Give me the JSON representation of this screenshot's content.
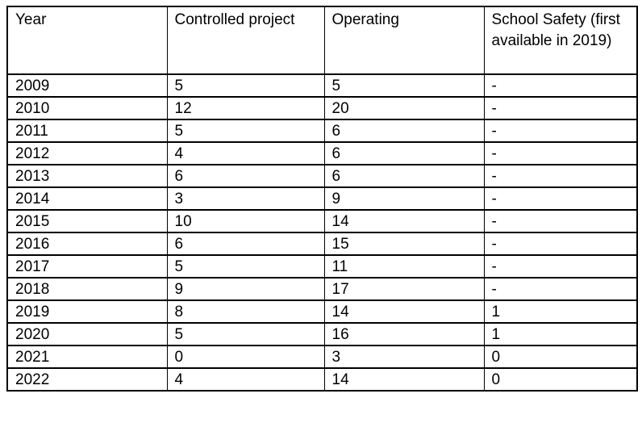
{
  "table": {
    "columns": [
      "Year",
      "Controlled project",
      "Operating",
      "School Safety (first available in 2019)"
    ],
    "rows": [
      {
        "year": "2009",
        "controlled_project": "5",
        "operating": "5",
        "school_safety": "-"
      },
      {
        "year": "2010",
        "controlled_project": "12",
        "operating": "20",
        "school_safety": "-"
      },
      {
        "year": "2011",
        "controlled_project": "5",
        "operating": "6",
        "school_safety": "-"
      },
      {
        "year": "2012",
        "controlled_project": "4",
        "operating": "6",
        "school_safety": "-"
      },
      {
        "year": "2013",
        "controlled_project": "6",
        "operating": "6",
        "school_safety": "-"
      },
      {
        "year": "2014",
        "controlled_project": "3",
        "operating": "9",
        "school_safety": "-"
      },
      {
        "year": "2015",
        "controlled_project": "10",
        "operating": "14",
        "school_safety": "-"
      },
      {
        "year": "2016",
        "controlled_project": "6",
        "operating": "15",
        "school_safety": "-"
      },
      {
        "year": "2017",
        "controlled_project": "5",
        "operating": "11",
        "school_safety": "-"
      },
      {
        "year": "2018",
        "controlled_project": "9",
        "operating": "17",
        "school_safety": "-"
      },
      {
        "year": "2019",
        "controlled_project": "8",
        "operating": "14",
        "school_safety": "1"
      },
      {
        "year": "2020",
        "controlled_project": "5",
        "operating": "16",
        "school_safety": "1"
      },
      {
        "year": "2021",
        "controlled_project": "0",
        "operating": "3",
        "school_safety": "0"
      },
      {
        "year": "2022",
        "controlled_project": "4",
        "operating": "14",
        "school_safety": "0"
      }
    ]
  },
  "chart_data": {
    "type": "table",
    "title": "",
    "columns": [
      "Year",
      "Controlled project",
      "Operating",
      "School Safety (first available in 2019)"
    ],
    "x": [
      2009,
      2010,
      2011,
      2012,
      2013,
      2014,
      2015,
      2016,
      2017,
      2018,
      2019,
      2020,
      2021,
      2022
    ],
    "series": [
      {
        "name": "Controlled project",
        "values": [
          5,
          12,
          5,
          4,
          6,
          3,
          10,
          6,
          5,
          9,
          8,
          5,
          0,
          4
        ]
      },
      {
        "name": "Operating",
        "values": [
          5,
          20,
          6,
          6,
          6,
          9,
          14,
          15,
          11,
          17,
          14,
          16,
          3,
          14
        ]
      },
      {
        "name": "School Safety (first available in 2019)",
        "values": [
          null,
          null,
          null,
          null,
          null,
          null,
          null,
          null,
          null,
          null,
          1,
          1,
          0,
          0
        ]
      }
    ]
  },
  "colors": {
    "border": "#000000",
    "text": "#000000",
    "background": "#ffffff"
  }
}
